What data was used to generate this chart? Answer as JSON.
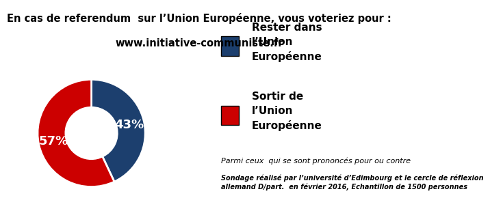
{
  "title_line1": "En cas de referendum  sur l’Union Européenne, vous voteriez pour :",
  "title_line2": "www.initiative-communiste.fr",
  "slices": [
    43,
    57
  ],
  "colors": [
    "#1c3f6e",
    "#cc0000"
  ],
  "labels_in_chart": [
    "43%",
    "57%"
  ],
  "legend_label1": "Rester dans\nl’Union\nEuropéenne",
  "legend_label2": "Sortir de\nl’Union\nEuropéenne",
  "sub_note": "Parmi ceux  qui se sont prononcés pour ou contre",
  "footer": "Sondage réalisé par l’université d’Edimbourg et le cercle de réflexion\nallemand D/part.  en février 2016, Echantillon de 1500 personnes",
  "bg_color": "#ffffff",
  "text_color": "#000000",
  "title_fontsize": 10.5,
  "legend_fontsize": 11,
  "sub_note_fontsize": 8,
  "footer_fontsize": 7
}
